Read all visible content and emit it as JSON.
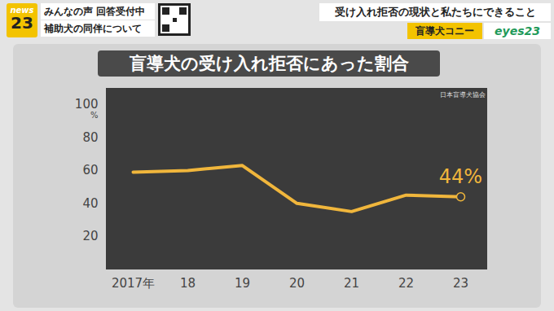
{
  "screen": {
    "logo": [
      "news",
      "23"
    ],
    "tags": [
      "みんなの声 回答受付中",
      "補助犬の同伴について"
    ],
    "headline": "受け入れ拒否の現状と私たちにできること",
    "segment": "盲導犬コニー",
    "corner": "eyes23"
  },
  "chart_data": {
    "type": "line",
    "title": "盲導犬の受け入れ拒否にあった割合",
    "source": "日本盲導犬協会",
    "y_label": "%",
    "categories": [
      "2017年",
      "18",
      "19",
      "20",
      "21",
      "22",
      "23"
    ],
    "values": [
      59,
      60,
      63,
      40,
      35,
      45,
      44
    ],
    "value_labels": [
      null,
      null,
      null,
      null,
      null,
      null,
      "44%"
    ],
    "data_labels": true,
    "marker": "circle",
    "color": "#f0b63c",
    "ylim": [
      0,
      110
    ],
    "yticks": [
      20,
      40,
      60,
      80,
      100
    ],
    "grid": false
  }
}
